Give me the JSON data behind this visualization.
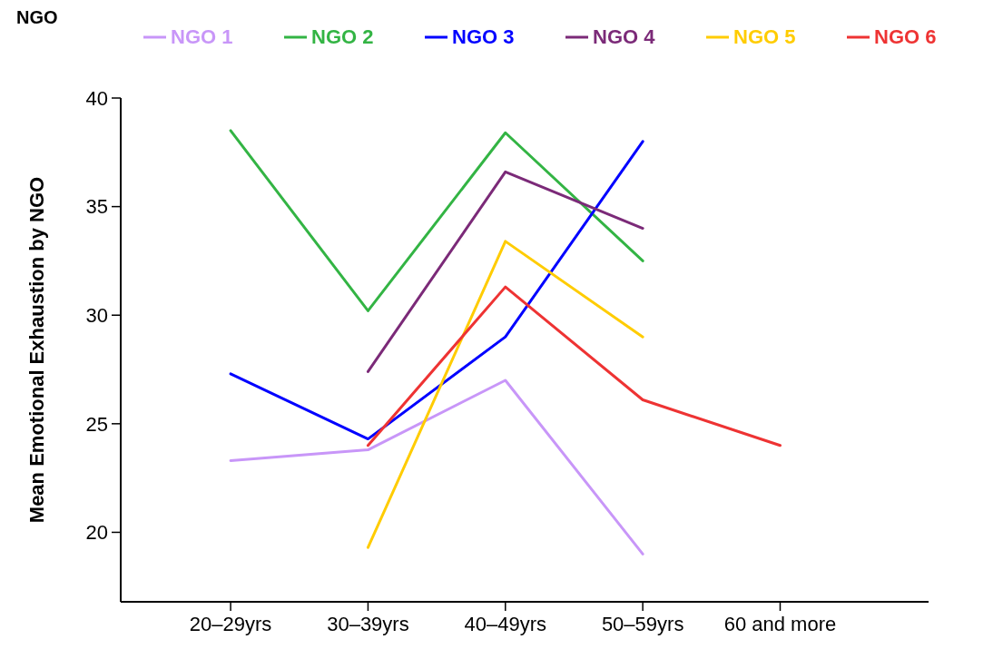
{
  "chart_data": {
    "type": "line",
    "ylabel": "Mean Emotional Exhaustion by NGO",
    "legend_title": "NGO",
    "legend": "top",
    "categories": [
      "20–29yrs",
      "30–39yrs",
      "40–49yrs",
      "50–59yrs",
      "60 and more"
    ],
    "ylim": [
      16.8,
      40
    ],
    "yticks": [
      20,
      25,
      30,
      35,
      40
    ],
    "grid": false,
    "series": [
      {
        "name": "NGO 1",
        "color": "#c896f8",
        "values": [
          23.3,
          23.8,
          27.0,
          19.0,
          null
        ]
      },
      {
        "name": "NGO 2",
        "color": "#33b444",
        "values": [
          38.5,
          30.2,
          38.4,
          32.5,
          null
        ]
      },
      {
        "name": "NGO 3",
        "color": "#0000ff",
        "values": [
          27.3,
          24.3,
          29.0,
          38.0,
          null
        ]
      },
      {
        "name": "NGO 4",
        "color": "#7b2a78",
        "values": [
          null,
          27.4,
          36.6,
          34.0,
          null
        ]
      },
      {
        "name": "NGO 5",
        "color": "#ffcc00",
        "values": [
          null,
          19.3,
          33.4,
          29.0,
          null
        ]
      },
      {
        "name": "NGO 6",
        "color": "#ee3333",
        "values": [
          null,
          24.0,
          31.3,
          26.1,
          24.0
        ]
      }
    ]
  }
}
